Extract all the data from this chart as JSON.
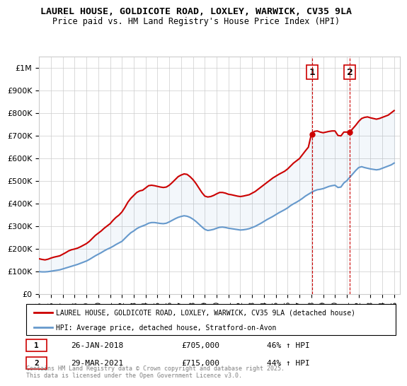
{
  "title": "LAUREL HOUSE, GOLDICOTE ROAD, LOXLEY, WARWICK, CV35 9LA",
  "subtitle": "Price paid vs. HM Land Registry's House Price Index (HPI)",
  "legend_line1": "LAUREL HOUSE, GOLDICOTE ROAD, LOXLEY, WARWICK, CV35 9LA (detached house)",
  "legend_line2": "HPI: Average price, detached house, Stratford-on-Avon",
  "footnote": "Contains HM Land Registry data © Crown copyright and database right 2025.\nThis data is licensed under the Open Government Licence v3.0.",
  "annotation1": {
    "label": "1",
    "date": "26-JAN-2018",
    "price": "£705,000",
    "pct": "46% ↑ HPI"
  },
  "annotation2": {
    "label": "2",
    "date": "29-MAR-2021",
    "price": "£715,000",
    "pct": "44% ↑ HPI"
  },
  "red_color": "#cc0000",
  "blue_color": "#6699cc",
  "vline_color": "#cc0000",
  "vline_style": "--",
  "background_color": "#ffffff",
  "grid_color": "#cccccc",
  "ylim": [
    0,
    1050000
  ],
  "yticks": [
    0,
    100000,
    200000,
    300000,
    400000,
    500000,
    600000,
    700000,
    800000,
    900000,
    1000000
  ],
  "ytick_labels": [
    "£0",
    "£100K",
    "£200K",
    "£300K",
    "£400K",
    "£500K",
    "£600K",
    "£700K",
    "£800K",
    "£900K",
    "£1M"
  ],
  "xlim_start": 1995.0,
  "xlim_end": 2025.5,
  "xticks": [
    1995,
    1996,
    1997,
    1998,
    1999,
    2000,
    2001,
    2002,
    2003,
    2004,
    2005,
    2006,
    2007,
    2008,
    2009,
    2010,
    2011,
    2012,
    2013,
    2014,
    2015,
    2016,
    2017,
    2018,
    2019,
    2020,
    2021,
    2022,
    2023,
    2024,
    2025
  ],
  "vline1_x": 2018.07,
  "vline2_x": 2021.24,
  "sale1_x": 2018.07,
  "sale1_y": 705000,
  "sale2_x": 2021.24,
  "sale2_y": 715000,
  "red_data_x": [
    1995.0,
    1995.25,
    1995.5,
    1995.75,
    1996.0,
    1996.25,
    1996.5,
    1996.75,
    1997.0,
    1997.25,
    1997.5,
    1997.75,
    1998.0,
    1998.25,
    1998.5,
    1998.75,
    1999.0,
    1999.25,
    1999.5,
    1999.75,
    2000.0,
    2000.25,
    2000.5,
    2000.75,
    2001.0,
    2001.25,
    2001.5,
    2001.75,
    2002.0,
    2002.25,
    2002.5,
    2002.75,
    2003.0,
    2003.25,
    2003.5,
    2003.75,
    2004.0,
    2004.25,
    2004.5,
    2004.75,
    2005.0,
    2005.25,
    2005.5,
    2005.75,
    2006.0,
    2006.25,
    2006.5,
    2006.75,
    2007.0,
    2007.25,
    2007.5,
    2007.75,
    2008.0,
    2008.25,
    2008.5,
    2008.75,
    2009.0,
    2009.25,
    2009.5,
    2009.75,
    2010.0,
    2010.25,
    2010.5,
    2010.75,
    2011.0,
    2011.25,
    2011.5,
    2011.75,
    2012.0,
    2012.25,
    2012.5,
    2012.75,
    2013.0,
    2013.25,
    2013.5,
    2013.75,
    2014.0,
    2014.25,
    2014.5,
    2014.75,
    2015.0,
    2015.25,
    2015.5,
    2015.75,
    2016.0,
    2016.25,
    2016.5,
    2016.75,
    2017.0,
    2017.25,
    2017.5,
    2017.75,
    2018.0,
    2018.25,
    2018.5,
    2018.75,
    2019.0,
    2019.25,
    2019.5,
    2019.75,
    2020.0,
    2020.25,
    2020.5,
    2020.75,
    2021.0,
    2021.25,
    2021.5,
    2021.75,
    2022.0,
    2022.25,
    2022.5,
    2022.75,
    2023.0,
    2023.25,
    2023.5,
    2023.75,
    2024.0,
    2024.25,
    2024.5,
    2024.75,
    2025.0
  ],
  "red_data_y": [
    155000,
    152000,
    150000,
    153000,
    158000,
    162000,
    165000,
    168000,
    175000,
    182000,
    190000,
    195000,
    198000,
    202000,
    208000,
    215000,
    222000,
    232000,
    245000,
    258000,
    268000,
    278000,
    290000,
    300000,
    310000,
    325000,
    338000,
    348000,
    362000,
    382000,
    405000,
    422000,
    435000,
    448000,
    455000,
    458000,
    468000,
    478000,
    480000,
    478000,
    475000,
    472000,
    470000,
    472000,
    480000,
    492000,
    505000,
    518000,
    525000,
    530000,
    528000,
    518000,
    505000,
    488000,
    468000,
    448000,
    432000,
    428000,
    430000,
    435000,
    442000,
    448000,
    448000,
    445000,
    440000,
    438000,
    435000,
    432000,
    430000,
    432000,
    435000,
    438000,
    445000,
    452000,
    462000,
    472000,
    482000,
    492000,
    502000,
    512000,
    520000,
    528000,
    535000,
    542000,
    552000,
    565000,
    578000,
    588000,
    598000,
    615000,
    632000,
    648000,
    705000,
    718000,
    720000,
    715000,
    712000,
    715000,
    718000,
    720000,
    720000,
    700000,
    698000,
    715000,
    715000,
    715000,
    730000,
    745000,
    762000,
    775000,
    780000,
    782000,
    778000,
    775000,
    772000,
    775000,
    780000,
    785000,
    790000,
    800000,
    810000
  ],
  "blue_data_x": [
    1995.0,
    1995.25,
    1995.5,
    1995.75,
    1996.0,
    1996.25,
    1996.5,
    1996.75,
    1997.0,
    1997.25,
    1997.5,
    1997.75,
    1998.0,
    1998.25,
    1998.5,
    1998.75,
    1999.0,
    1999.25,
    1999.5,
    1999.75,
    2000.0,
    2000.25,
    2000.5,
    2000.75,
    2001.0,
    2001.25,
    2001.5,
    2001.75,
    2002.0,
    2002.25,
    2002.5,
    2002.75,
    2003.0,
    2003.25,
    2003.5,
    2003.75,
    2004.0,
    2004.25,
    2004.5,
    2004.75,
    2005.0,
    2005.25,
    2005.5,
    2005.75,
    2006.0,
    2006.25,
    2006.5,
    2006.75,
    2007.0,
    2007.25,
    2007.5,
    2007.75,
    2008.0,
    2008.25,
    2008.5,
    2008.75,
    2009.0,
    2009.25,
    2009.5,
    2009.75,
    2010.0,
    2010.25,
    2010.5,
    2010.75,
    2011.0,
    2011.25,
    2011.5,
    2011.75,
    2012.0,
    2012.25,
    2012.5,
    2012.75,
    2013.0,
    2013.25,
    2013.5,
    2013.75,
    2014.0,
    2014.25,
    2014.5,
    2014.75,
    2015.0,
    2015.25,
    2015.5,
    2015.75,
    2016.0,
    2016.25,
    2016.5,
    2016.75,
    2017.0,
    2017.25,
    2017.5,
    2017.75,
    2018.0,
    2018.25,
    2018.5,
    2018.75,
    2019.0,
    2019.25,
    2019.5,
    2019.75,
    2020.0,
    2020.25,
    2020.5,
    2020.75,
    2021.0,
    2021.25,
    2021.5,
    2021.75,
    2022.0,
    2022.25,
    2022.5,
    2022.75,
    2023.0,
    2023.25,
    2023.5,
    2023.75,
    2024.0,
    2024.25,
    2024.5,
    2024.75,
    2025.0
  ],
  "blue_data_y": [
    98000,
    97000,
    97000,
    98000,
    100000,
    102000,
    104000,
    106000,
    110000,
    114000,
    118000,
    122000,
    126000,
    130000,
    135000,
    140000,
    145000,
    152000,
    160000,
    168000,
    175000,
    182000,
    190000,
    197000,
    203000,
    210000,
    218000,
    225000,
    232000,
    245000,
    258000,
    270000,
    278000,
    288000,
    295000,
    300000,
    305000,
    312000,
    315000,
    315000,
    313000,
    311000,
    310000,
    312000,
    318000,
    325000,
    332000,
    338000,
    342000,
    345000,
    343000,
    338000,
    330000,
    320000,
    308000,
    296000,
    285000,
    280000,
    282000,
    285000,
    290000,
    294000,
    295000,
    293000,
    290000,
    288000,
    286000,
    284000,
    282000,
    283000,
    285000,
    288000,
    293000,
    298000,
    305000,
    312000,
    320000,
    328000,
    335000,
    342000,
    350000,
    358000,
    365000,
    372000,
    380000,
    390000,
    398000,
    405000,
    413000,
    422000,
    432000,
    440000,
    448000,
    455000,
    460000,
    462000,
    465000,
    470000,
    475000,
    478000,
    480000,
    470000,
    472000,
    490000,
    500000,
    515000,
    530000,
    545000,
    558000,
    562000,
    558000,
    555000,
    552000,
    550000,
    548000,
    550000,
    555000,
    560000,
    565000,
    570000,
    578000
  ]
}
